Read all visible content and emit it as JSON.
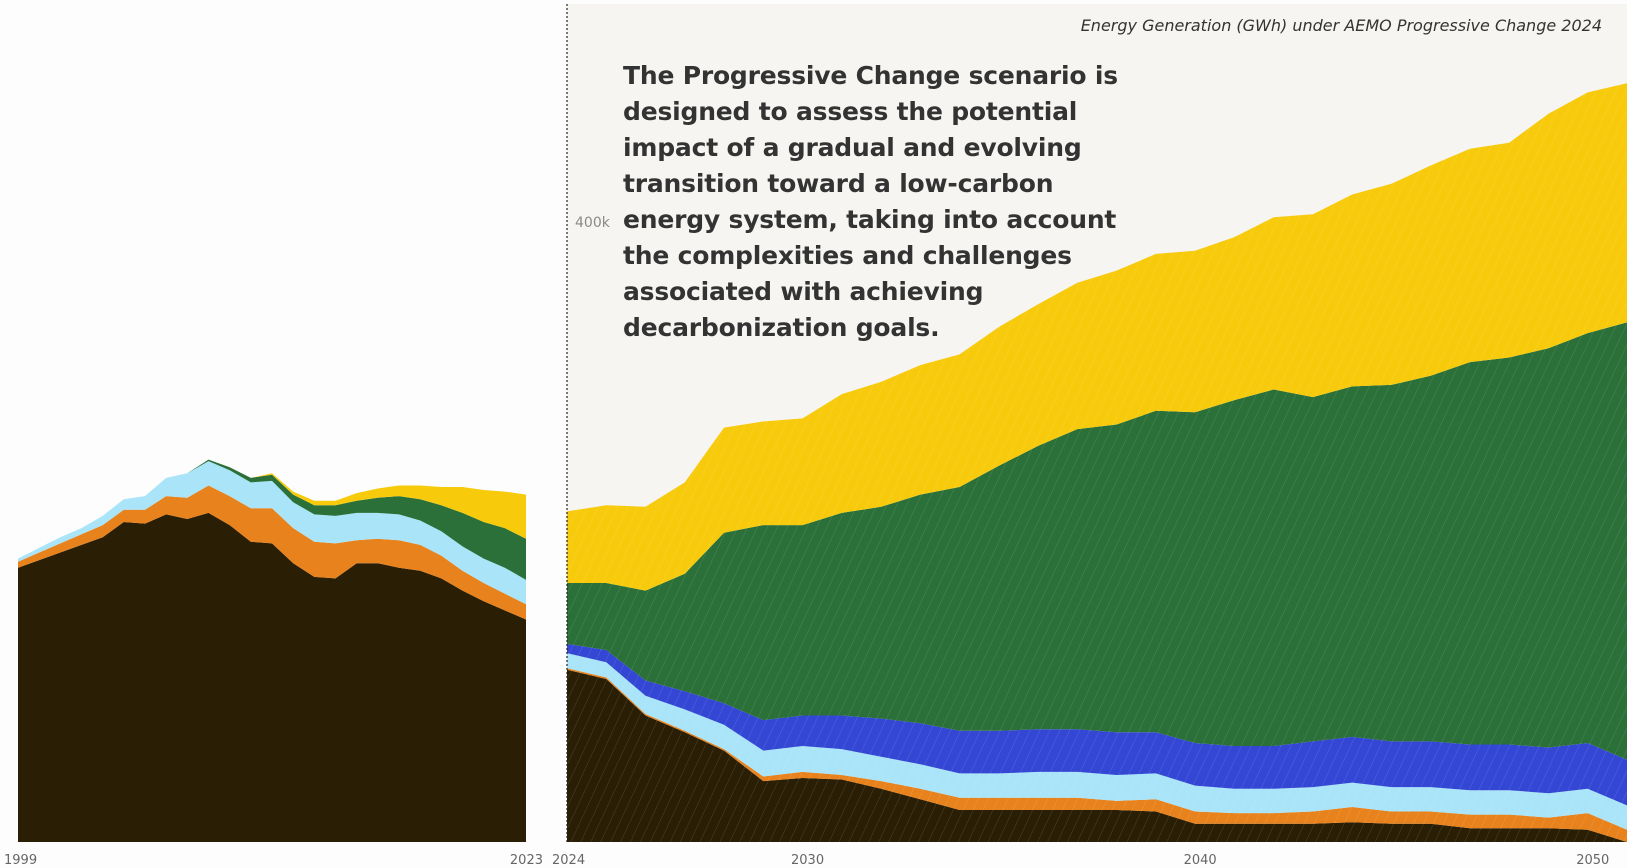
{
  "title": "Energy Generation (GWh) under AEMO Progressive Change 2024",
  "description": "The Progressive Change scenario is designed to assess the potential impact of a gradual and evolving transition toward a low-carbon energy system, taking into account the complexities and challenges associated with achieving decarbonization goals.",
  "colors": {
    "coal": "#2a1f05",
    "gas": "#e8821c",
    "hydro": "#a9e4f9",
    "storage": "#3347d4",
    "wind": "#2a7038",
    "solar": "#f7ca0c",
    "historical_background": "#fdfdfd",
    "projection_background": "#f6f5f1"
  },
  "chart_data": [
    {
      "type": "area",
      "stacked": true,
      "period": "historical",
      "x": [
        1999,
        2000,
        2001,
        2002,
        2003,
        2004,
        2005,
        2006,
        2007,
        2008,
        2009,
        2010,
        2011,
        2012,
        2013,
        2014,
        2015,
        2016,
        2017,
        2018,
        2019,
        2020,
        2021,
        2022,
        2023
      ],
      "xticks": [
        "1999",
        "2023"
      ],
      "ylim": [
        0,
        550000
      ],
      "series": [
        {
          "key": "coal",
          "values": [
            180000,
            185000,
            190000,
            195000,
            200000,
            210000,
            209000,
            215000,
            212000,
            216000,
            208000,
            197000,
            196000,
            183000,
            174000,
            173000,
            183000,
            183000,
            180000,
            178000,
            173000,
            165000,
            158000,
            152000,
            146000
          ]
        },
        {
          "key": "gas",
          "values": [
            4000,
            5000,
            6000,
            7000,
            8000,
            8000,
            9000,
            12000,
            14000,
            18000,
            19000,
            22000,
            23000,
            23000,
            23000,
            23000,
            15000,
            16000,
            18000,
            17000,
            15000,
            13000,
            12000,
            11000,
            10000
          ]
        },
        {
          "key": "hydro",
          "values": [
            2000,
            3000,
            4000,
            4000,
            6000,
            7000,
            9000,
            12000,
            16000,
            16000,
            17000,
            17000,
            18000,
            17000,
            18000,
            18000,
            18000,
            17000,
            17000,
            16000,
            16000,
            16000,
            16000,
            17000,
            16000
          ]
        },
        {
          "key": "wind",
          "values": [
            0,
            0,
            0,
            0,
            0,
            0,
            0,
            0,
            0,
            1000,
            2000,
            3000,
            4000,
            5000,
            6000,
            7000,
            8000,
            10000,
            12000,
            14000,
            17000,
            22000,
            24000,
            26000,
            27000
          ]
        },
        {
          "key": "solar",
          "values": [
            0,
            0,
            0,
            0,
            0,
            0,
            0,
            0,
            0,
            0,
            0,
            0,
            1000,
            2000,
            3000,
            3000,
            5000,
            6000,
            7000,
            9000,
            12000,
            17000,
            21000,
            24000,
            29000
          ]
        }
      ]
    },
    {
      "type": "area",
      "stacked": true,
      "period": "projection",
      "x": [
        2024,
        2025,
        2026,
        2027,
        2028,
        2029,
        2030,
        2031,
        2032,
        2033,
        2034,
        2035,
        2036,
        2037,
        2038,
        2039,
        2040,
        2041,
        2042,
        2043,
        2044,
        2045,
        2046,
        2047,
        2048,
        2049,
        2050,
        2051
      ],
      "xticks": [
        "2024",
        "2030",
        "2040",
        "2050"
      ],
      "ylim": [
        0,
        550000
      ],
      "yticks": [
        {
          "value": 400000,
          "label": "400k"
        }
      ],
      "series": [
        {
          "key": "coal",
          "values": [
            113000,
            107000,
            83000,
            72000,
            60000,
            40000,
            42000,
            41000,
            35000,
            28000,
            21000,
            21000,
            21000,
            21000,
            21000,
            20000,
            12000,
            12000,
            12000,
            12000,
            13000,
            12000,
            12000,
            9000,
            9000,
            9000,
            8000,
            0
          ]
        },
        {
          "key": "gas",
          "values": [
            1000,
            1000,
            1000,
            1000,
            1000,
            3000,
            4000,
            3000,
            5000,
            7000,
            8000,
            8000,
            8000,
            8000,
            6000,
            8000,
            8000,
            7000,
            7000,
            8000,
            10000,
            8000,
            8000,
            9000,
            9000,
            7000,
            11000,
            8000
          ]
        },
        {
          "key": "hydro",
          "values": [
            10000,
            10000,
            12000,
            14000,
            16000,
            17000,
            17000,
            17000,
            16000,
            16000,
            16000,
            16000,
            17000,
            17000,
            17000,
            17000,
            17000,
            16000,
            16000,
            16000,
            16000,
            16000,
            16000,
            16000,
            16000,
            16000,
            16000,
            16000
          ]
        },
        {
          "key": "storage",
          "values": [
            6000,
            8000,
            10000,
            12000,
            14000,
            20000,
            20000,
            22000,
            25000,
            27000,
            28000,
            28000,
            28000,
            28000,
            28000,
            27000,
            28000,
            28000,
            28000,
            30000,
            30000,
            30000,
            30000,
            30000,
            30000,
            30000,
            30000,
            30000
          ]
        },
        {
          "key": "wind",
          "values": [
            40000,
            44000,
            59000,
            77000,
            112000,
            128000,
            125000,
            133000,
            139000,
            150000,
            160000,
            174000,
            186000,
            197000,
            202000,
            211000,
            217000,
            227000,
            234000,
            226000,
            230000,
            234000,
            240000,
            251000,
            254000,
            262000,
            269000,
            287000
          ]
        },
        {
          "key": "solar",
          "values": [
            47000,
            51000,
            55000,
            60000,
            69000,
            68000,
            70000,
            78000,
            82000,
            85000,
            87000,
            91000,
            93000,
            96000,
            101000,
            103000,
            106000,
            107000,
            113000,
            120000,
            126000,
            132000,
            138000,
            140000,
            141000,
            154000,
            158000,
            157000
          ]
        }
      ]
    }
  ]
}
